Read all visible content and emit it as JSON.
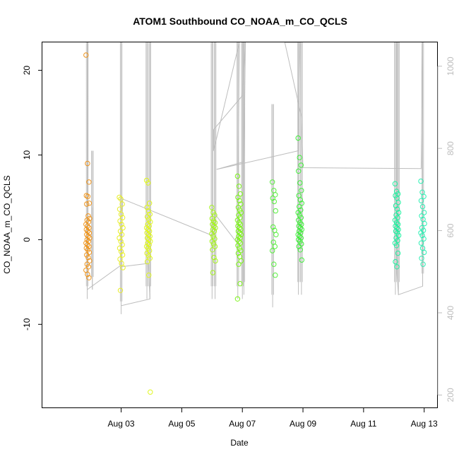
{
  "chart_data": {
    "type": "scatter",
    "title": "ATOM1 Southbound CO_NOAA_m_CO_QCLS",
    "xlabel": "Date",
    "ylabel": "CO_NOAA_m_CO_QCLS",
    "x_unit": "days since Aug 01 00:00",
    "x_range": [
      0.4,
      13.45
    ],
    "ylim": [
      -19.9,
      23.3
    ],
    "x_ticks": [
      {
        "x": 3,
        "label": "Aug 03"
      },
      {
        "x": 5,
        "label": "Aug 05"
      },
      {
        "x": 7,
        "label": "Aug 07"
      },
      {
        "x": 9,
        "label": "Aug 09"
      },
      {
        "x": 11,
        "label": "Aug 11"
      },
      {
        "x": 13,
        "label": "Aug 13"
      }
    ],
    "y_ticks": [
      -10,
      0,
      10,
      20
    ],
    "right_axis": {
      "range": [
        1058,
        168
      ],
      "ticks": [
        200,
        400,
        600,
        800,
        1000
      ],
      "color": "#bdbdbd"
    },
    "marker_colors": {
      "g1": "#f0961e",
      "g2": "#e8ee2a",
      "g3": "#e0f71e",
      "g4": "#a6f51e",
      "g5": "#7df51a",
      "g6": "#56f03c",
      "g7": "#3fef3a",
      "g8": "#20f0a0",
      "g9": "#2cf0b4"
    },
    "line_color": "#bdbdbd",
    "groups": [
      {
        "id": "g1",
        "x": 1.9,
        "values": [
          21.8,
          9.0,
          6.8,
          5.2,
          5.1,
          4.3,
          4.2,
          2.8,
          2.5,
          2.3,
          2.1,
          1.8,
          1.6,
          1.4,
          1.2,
          1.0,
          0.8,
          0.6,
          0.4,
          0.2,
          0.0,
          -0.2,
          -0.4,
          -0.6,
          -0.8,
          -1.0,
          -1.2,
          -1.5,
          -1.8,
          -2.1,
          -2.5,
          -2.9,
          -3.2,
          -3.6,
          -4.1,
          -4.5
        ]
      },
      {
        "id": "g2",
        "x": 3.0,
        "values": [
          5.0,
          4.8,
          4.2,
          3.6,
          3.0,
          2.6,
          2.2,
          1.8,
          1.4,
          1.0,
          0.6,
          0.2,
          -0.2,
          -0.6,
          -1.0,
          -1.4,
          -1.8,
          -2.3,
          -2.8,
          -3.3,
          -6.0
        ]
      },
      {
        "id": "g3",
        "x": 3.9,
        "values": [
          7.0,
          6.7,
          4.3,
          3.8,
          3.4,
          3.0,
          2.7,
          2.4,
          2.1,
          1.8,
          1.6,
          1.4,
          1.2,
          1.0,
          0.8,
          0.6,
          0.4,
          0.2,
          0.0,
          -0.2,
          -0.4,
          -0.6,
          -0.8,
          -1.0,
          -1.3,
          -1.6,
          -1.9,
          -2.2,
          -2.6,
          -4.2,
          -18.0
        ]
      },
      {
        "id": "g4",
        "x": 6.05,
        "values": [
          3.8,
          3.2,
          2.9,
          2.5,
          2.2,
          2.0,
          1.8,
          1.6,
          1.4,
          1.2,
          1.0,
          0.7,
          0.4,
          0.1,
          -0.2,
          -0.5,
          -0.8,
          -1.2,
          -2.1,
          -2.5,
          -3.9
        ]
      },
      {
        "id": "g5",
        "x": 6.9,
        "values": [
          7.5,
          6.3,
          5.4,
          5.0,
          4.6,
          4.2,
          3.8,
          3.5,
          3.2,
          2.9,
          2.6,
          2.3,
          2.0,
          1.8,
          1.6,
          1.4,
          1.2,
          1.0,
          0.8,
          0.6,
          0.4,
          0.2,
          0.0,
          -0.2,
          -0.4,
          -0.7,
          -1.0,
          -1.3,
          -1.6,
          -2.0,
          -2.5,
          -2.9,
          -5.2,
          -7.0
        ]
      },
      {
        "id": "g6",
        "x": 8.05,
        "values": [
          6.8,
          5.8,
          5.3,
          4.9,
          4.5,
          3.4,
          1.5,
          1.1,
          0.6,
          -0.3,
          -0.8,
          -1.3,
          -2.9,
          -4.2
        ]
      },
      {
        "id": "g7",
        "x": 8.9,
        "values": [
          12.0,
          9.7,
          8.8,
          8.1,
          6.7,
          5.8,
          5.2,
          4.7,
          4.3,
          3.9,
          3.5,
          3.2,
          2.9,
          2.6,
          2.3,
          2.0,
          1.8,
          1.6,
          1.4,
          1.2,
          1.0,
          0.8,
          0.6,
          0.4,
          0.2,
          0.0,
          -0.2,
          -0.5,
          -0.8,
          -1.2,
          -2.4
        ]
      },
      {
        "id": "g8",
        "x": 12.1,
        "values": [
          6.6,
          5.7,
          5.4,
          5.2,
          4.9,
          4.4,
          4.0,
          3.6,
          3.2,
          2.9,
          2.6,
          2.3,
          2.0,
          1.8,
          1.6,
          1.4,
          1.2,
          1.0,
          0.8,
          0.5,
          0.2,
          -0.1,
          -0.4,
          -0.7,
          -1.6,
          -2.6,
          -3.2
        ]
      },
      {
        "id": "g9",
        "x": 12.95,
        "values": [
          6.9,
          5.6,
          5.1,
          4.6,
          3.9,
          3.2,
          2.8,
          2.4,
          1.9,
          1.4,
          1.1,
          0.8,
          0.5,
          0.1,
          -0.4,
          -1.0,
          -1.5,
          -2.2,
          -2.9
        ]
      }
    ],
    "spikes": [
      {
        "x": 1.88,
        "top": 23.3,
        "bottom": -7.0
      },
      {
        "x": 2.05,
        "top": 10.5,
        "bottom": -5.9
      },
      {
        "x": 3.0,
        "top": 23.3,
        "bottom": -8.8
      },
      {
        "x": 3.85,
        "top": 23.3,
        "bottom": -7.0
      },
      {
        "x": 3.95,
        "top": 23.3,
        "bottom": -7.0
      },
      {
        "x": 6.0,
        "top": 23.3,
        "bottom": -7.0
      },
      {
        "x": 6.1,
        "top": 23.3,
        "bottom": -7.0
      },
      {
        "x": 6.85,
        "top": 23.3,
        "bottom": -7.0
      },
      {
        "x": 7.0,
        "top": 23.3,
        "bottom": -7.0
      },
      {
        "x": 7.05,
        "top": 23.3,
        "bottom": -6.5
      },
      {
        "x": 8.0,
        "top": 16.0,
        "bottom": -8.0
      },
      {
        "x": 8.85,
        "top": 23.3,
        "bottom": -6.5
      },
      {
        "x": 8.95,
        "top": 23.3,
        "bottom": -6.5
      },
      {
        "x": 12.05,
        "top": 23.3,
        "bottom": -6.5
      },
      {
        "x": 12.15,
        "top": 23.3,
        "bottom": -6.5
      },
      {
        "x": 12.95,
        "top": 23.3,
        "bottom": -5.5
      }
    ],
    "track": [
      [
        1.9,
        23.3
      ],
      [
        1.88,
        -5.9
      ],
      [
        3.0,
        -3.0
      ],
      [
        3.05,
        4.8
      ],
      [
        6.0,
        0.5
      ],
      [
        6.1,
        3.0
      ],
      [
        6.85,
        -0.5
      ],
      [
        6.9,
        23.3
      ],
      [
        6.05,
        10.5
      ],
      [
        6.05,
        13.0
      ],
      [
        7.0,
        17.0
      ],
      [
        7.1,
        23.3
      ],
      [
        7.05,
        9.2
      ],
      [
        6.15,
        8.3
      ],
      [
        8.0,
        9.8
      ],
      [
        8.85,
        10.5
      ],
      [
        8.9,
        23.3
      ],
      [
        8.4,
        23.3
      ],
      [
        8.95,
        14.5
      ],
      [
        9.0,
        8.5
      ],
      [
        12.9,
        8.4
      ],
      [
        12.95,
        23.3
      ],
      [
        12.95,
        -5.5
      ],
      [
        12.15,
        -6.5
      ],
      [
        12.1,
        -4.0
      ],
      [
        12.1,
        23.3
      ]
    ],
    "extra_segments": [
      [
        [
          1.88,
          23.3
        ],
        [
          1.88,
          21.5
        ]
      ],
      [
        [
          3.0,
          -7.8
        ],
        [
          3.95,
          -7.0
        ],
        [
          3.9,
          -2.8
        ],
        [
          3.0,
          -3.2
        ]
      ],
      [
        [
          2.05,
          -5.9
        ],
        [
          2.05,
          3.8
        ]
      ]
    ]
  }
}
